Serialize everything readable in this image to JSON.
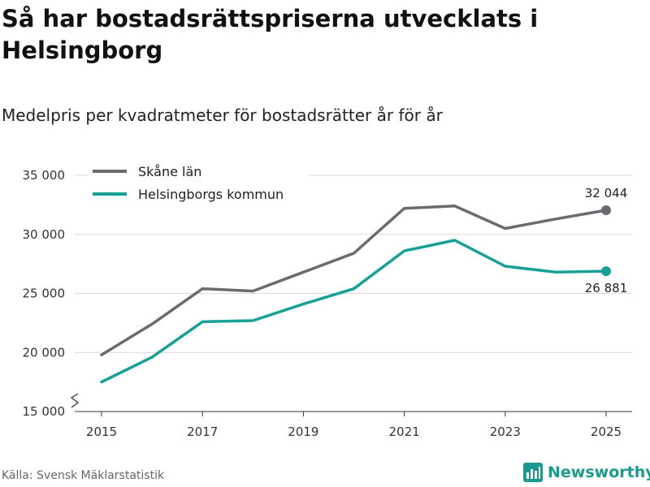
{
  "header": {
    "title": "Så har bostadsrättspriserna utvecklats i Helsingborg",
    "subtitle": "Medelpris per kvadratmeter för bostadsrätter år för år"
  },
  "footer": {
    "source": "Källa: Svensk Mäklarstatistik",
    "brand": "Newsworthy",
    "brand_icon": "bar-chart-logo-icon",
    "brand_color": "#1a9a8e"
  },
  "chart_data": {
    "type": "line",
    "title": "Så har bostadsrättspriserna utvecklats i Helsingborg",
    "subtitle": "Medelpris per kvadratmeter för bostadsrätter år för år",
    "xlabel": "",
    "ylabel": "",
    "x": [
      2015,
      2016,
      2017,
      2018,
      2019,
      2020,
      2021,
      2022,
      2023,
      2024,
      2025
    ],
    "x_ticks": [
      2015,
      2017,
      2019,
      2021,
      2023,
      2025
    ],
    "x_tick_labels": [
      "2015",
      "2017",
      "2019",
      "2021",
      "2023",
      "2025"
    ],
    "ylim": [
      15000,
      35000
    ],
    "y_ticks": [
      15000,
      20000,
      25000,
      30000,
      35000
    ],
    "y_tick_labels": [
      "15 000",
      "20 000",
      "25 000",
      "30 000",
      "35 000"
    ],
    "grid": true,
    "axis_break": true,
    "legend_position": "top-left",
    "series": [
      {
        "name": "Skåne län",
        "color": "#6b6a70",
        "values": [
          19800,
          22400,
          25400,
          25200,
          26800,
          28400,
          32200,
          32400,
          30500,
          31300,
          32044
        ],
        "end_label": "32 044",
        "end_label_position": "above"
      },
      {
        "name": "Helsingborgs kommun",
        "color": "#16a096",
        "values": [
          17500,
          19600,
          22600,
          22700,
          24100,
          25400,
          28600,
          29500,
          27300,
          26800,
          26881
        ],
        "end_label": "26 881",
        "end_label_position": "below"
      }
    ]
  }
}
